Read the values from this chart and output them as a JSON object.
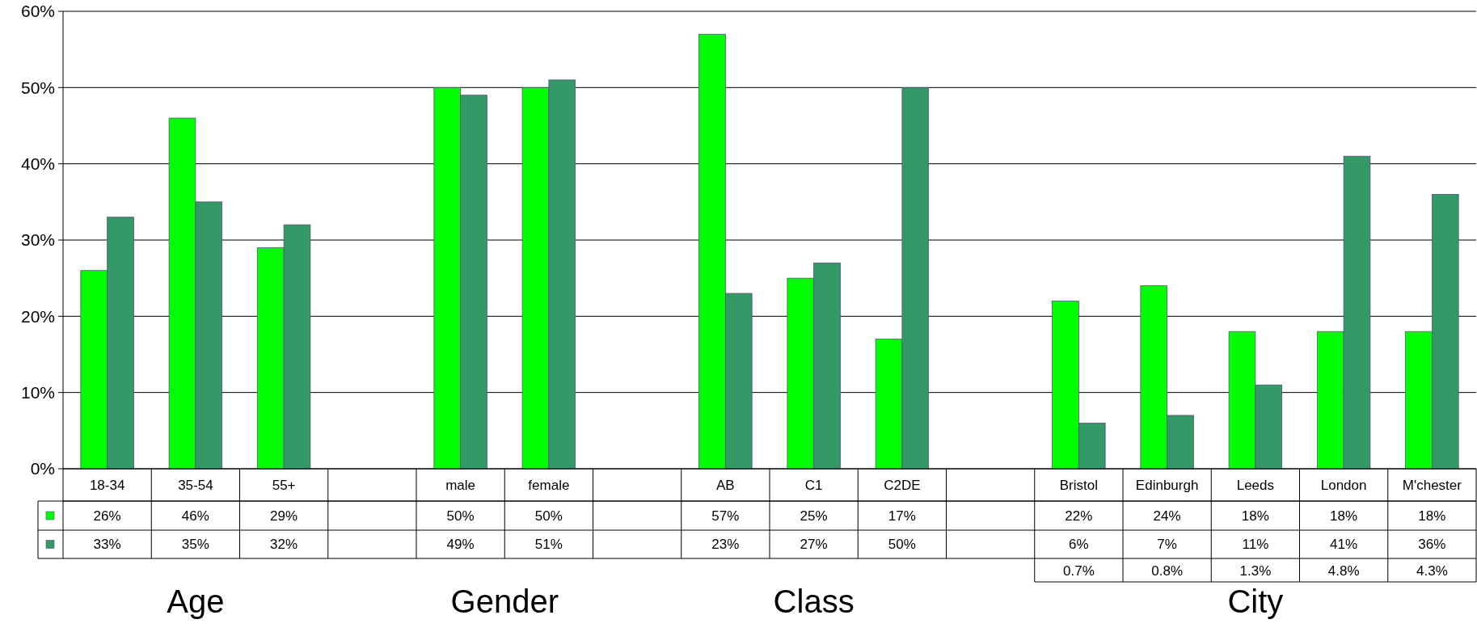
{
  "chart_data": {
    "type": "bar",
    "categories": [
      "18-34",
      "35-54",
      "55+",
      null,
      "male",
      "female",
      null,
      "AB",
      "C1",
      "C2DE",
      null,
      "Bristol",
      "Edinburgh",
      "Leeds",
      "London",
      "M'chester"
    ],
    "series": [
      {
        "color": "#00ff00",
        "values": [
          26,
          46,
          29,
          null,
          50,
          50,
          null,
          57,
          25,
          17,
          null,
          22,
          24,
          18,
          18,
          18
        ],
        "value_labels": [
          "26%",
          "46%",
          "29%",
          null,
          "50%",
          "50%",
          null,
          "57%",
          "25%",
          "17%",
          null,
          "22%",
          "24%",
          "18%",
          "18%",
          "18%"
        ]
      },
      {
        "color": "#339966",
        "values": [
          33,
          35,
          32,
          null,
          49,
          51,
          null,
          23,
          27,
          50,
          null,
          6,
          7,
          11,
          41,
          36
        ],
        "value_labels": [
          "33%",
          "35%",
          "32%",
          null,
          "49%",
          "51%",
          null,
          "23%",
          "27%",
          "50%",
          null,
          "6%",
          "7%",
          "11%",
          "41%",
          "36%"
        ]
      }
    ],
    "ylim": [
      0,
      60
    ],
    "yticks": [
      {
        "value": 0,
        "label": "0%"
      },
      {
        "value": 10,
        "label": "10%"
      },
      {
        "value": 20,
        "label": "20%"
      },
      {
        "value": 30,
        "label": "30%"
      },
      {
        "value": 40,
        "label": "40%"
      },
      {
        "value": 50,
        "label": "50%"
      },
      {
        "value": 60,
        "label": "60%"
      }
    ],
    "grid": "y",
    "annotations": [
      "Age",
      "Gender",
      "Class",
      "City",
      "0.7%",
      "0.8%",
      "1.3%",
      "4.8%",
      "4.3%"
    ]
  }
}
